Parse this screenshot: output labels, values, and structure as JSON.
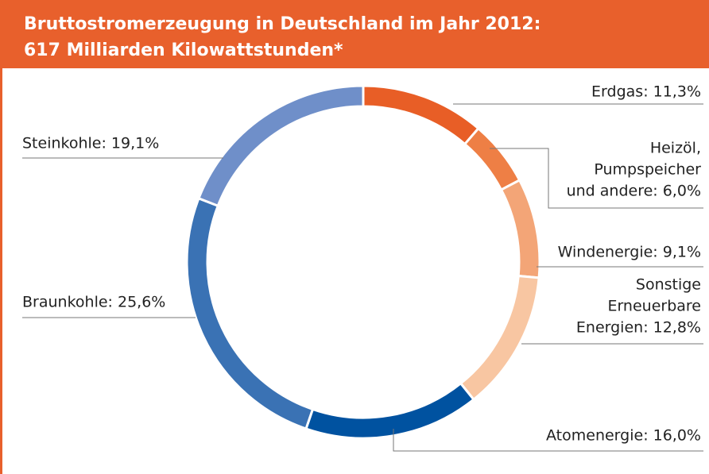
{
  "chart_data": {
    "type": "donut",
    "title": [
      "Bruttostromerzeugung in Deutschland im Jahr 2012:",
      "617 Milliarden Kilowattstunden*"
    ],
    "labels": [
      [
        "Erdgas: 11,3%"
      ],
      [
        "Heizöl,",
        "Pumpspeicher",
        "und andere: 6,0%"
      ],
      [
        "Windenergie: 9,1%"
      ],
      [
        "Sonstige",
        "Erneuerbare",
        "Energien: 12,8%"
      ],
      [
        "Atomenergie: 16,0%"
      ],
      [
        "Braunkohle: 25,6%"
      ],
      [
        "Steinkohle: 19,1%"
      ]
    ],
    "values": [
      11.3,
      6.0,
      9.1,
      12.8,
      16.0,
      25.6,
      19.1
    ],
    "colors": [
      "#e85e26",
      "#ee7f45",
      "#f3a577",
      "#f8c6a2",
      "#0052a0",
      "#3a72b4",
      "#6f8fc9"
    ],
    "header_color": "#e8602c"
  }
}
